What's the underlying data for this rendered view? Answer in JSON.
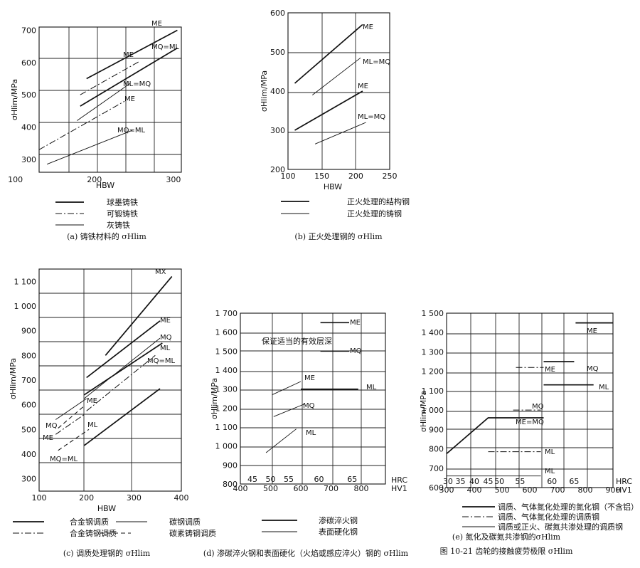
{
  "figure_caption": "图 10-21 齿轮的接触疲劳极限 σHlim",
  "chart_data": [
    {
      "id": "a",
      "type": "line",
      "caption": "(a) 铸铁材料的 σHlim",
      "xlabel": "HBW",
      "ylabel": "σHlim/MPa",
      "xlim": [
        130,
        310
      ],
      "ylim": [
        260,
        710
      ],
      "xticks": [
        100,
        200,
        300
      ],
      "xtick_labels": [
        "100",
        "200",
        "300"
      ],
      "yticks": [
        300,
        400,
        500,
        600,
        700
      ],
      "ytick_labels": [
        "300",
        "400",
        "500",
        "600",
        "700"
      ],
      "series": [
        {
          "name": "ME",
          "style": "solid",
          "x": [
            190,
            305
          ],
          "y": [
            550,
            700
          ]
        },
        {
          "name": "MQ=ML",
          "style": "solid",
          "x": [
            182,
            305
          ],
          "y": [
            465,
            645
          ]
        },
        {
          "name": "ME",
          "style": "dashdot",
          "x": [
            182,
            258
          ],
          "y": [
            500,
            605
          ]
        },
        {
          "name": "ML=MQ",
          "style": "dashdot",
          "x": [
            130,
            238
          ],
          "y": [
            330,
            480
          ]
        },
        {
          "name": "ME",
          "style": "thin",
          "x": [
            178,
            245
          ],
          "y": [
            420,
            535
          ]
        },
        {
          "name": "MQ=ML",
          "style": "thin",
          "x": [
            140,
            248
          ],
          "y": [
            285,
            390
          ]
        }
      ],
      "legend": [
        {
          "style": "solid",
          "label": "球墨铸铁"
        },
        {
          "style": "dashdot",
          "label": "可锻铸铁"
        },
        {
          "style": "thin",
          "label": "灰铸铁"
        }
      ]
    },
    {
      "id": "b",
      "type": "line",
      "caption": "(b) 正火处理钢的 σHlim",
      "xlabel": "HBW",
      "ylabel": "σHlim/MPa",
      "xlim": [
        100,
        250
      ],
      "ylim": [
        200,
        600
      ],
      "xticks": [
        100,
        150,
        200,
        250
      ],
      "xtick_labels": [
        "100",
        "150",
        "200",
        "250"
      ],
      "yticks": [
        200,
        300,
        400,
        500,
        600
      ],
      "ytick_labels": [
        "200",
        "300",
        "400",
        "500",
        "600"
      ],
      "series": [
        {
          "name": "ME",
          "style": "solid",
          "x": [
            110,
            210
          ],
          "y": [
            420,
            570
          ]
        },
        {
          "name": "ML=MQ",
          "style": "solid",
          "x": [
            110,
            210
          ],
          "y": [
            300,
            400
          ]
        },
        {
          "name": "ME",
          "style": "thin",
          "x": [
            136,
            207
          ],
          "y": [
            390,
            485
          ]
        },
        {
          "name": "ML=MQ",
          "style": "thin",
          "x": [
            140,
            215
          ],
          "y": [
            265,
            320
          ]
        }
      ],
      "legend": [
        {
          "style": "solid",
          "label": "正火处理的结构钢"
        },
        {
          "style": "thin",
          "label": "正火处理的铸钢"
        }
      ]
    },
    {
      "id": "c",
      "type": "line",
      "caption": "(c) 调质处理钢的 σHlim",
      "xlabel": "HBW",
      "ylabel": "σHlim/MPa",
      "xlim": [
        100,
        400
      ],
      "ylim": [
        250,
        1150
      ],
      "xticks": [
        100,
        200,
        300,
        400
      ],
      "xtick_labels": [
        "100",
        "200",
        "300",
        "400"
      ],
      "yticks": [
        300,
        400,
        500,
        600,
        700,
        800,
        900,
        1000,
        1100
      ],
      "ytick_labels": [
        "300",
        "400",
        "500",
        "600",
        "700",
        "800",
        "900",
        "1 000",
        "1 100"
      ],
      "series": [
        {
          "name": "MX",
          "style": "solid",
          "x": [
            240,
            380
          ],
          "y": [
            800,
            1120
          ]
        },
        {
          "name": "ME",
          "style": "solid",
          "x": [
            200,
            355
          ],
          "y": [
            710,
            940
          ]
        },
        {
          "name": "MQ",
          "style": "solid",
          "x": [
            195,
            360
          ],
          "y": [
            640,
            850
          ]
        },
        {
          "name": "ML",
          "style": "solid",
          "x": [
            195,
            355
          ],
          "y": [
            435,
            665
          ]
        },
        {
          "name": "ME",
          "style": "thin",
          "x": [
            195,
            355
          ],
          "y": [
            625,
            870
          ]
        },
        {
          "name": "MQ=ML",
          "style": "dashdot",
          "x": [
            200,
            345
          ],
          "y": [
            575,
            800
          ]
        },
        {
          "name": "ME",
          "style": "dashed",
          "x": [
            140,
            195
          ],
          "y": [
            505,
            595
          ]
        },
        {
          "name": "MQ",
          "style": "thin",
          "x": [
            135,
            200
          ],
          "y": [
            540,
            625
          ]
        },
        {
          "name": "MQ=ML",
          "style": "dashed",
          "x": [
            140,
            205
          ],
          "y": [
            415,
            500
          ]
        },
        {
          "name": "ML",
          "style": "dashdot",
          "x": [
            135,
            195
          ],
          "y": [
            480,
            560
          ]
        }
      ],
      "legend": [
        {
          "style": "solid",
          "label": "合金钢调质"
        },
        {
          "style": "thin",
          "label": "碳钢调质"
        },
        {
          "style": "dashdot",
          "label": "合金铸钢调质"
        },
        {
          "style": "dashed",
          "label": "碳素铸钢调质"
        }
      ]
    },
    {
      "id": "d",
      "type": "line",
      "caption": "(d) 渗碳淬火钢和表面硬化（火焰或感应淬火）钢的 σHlim",
      "xlabel": "HRC",
      "x2label": "HV1",
      "ylabel": "σHlim/MPa",
      "annotation": "保证适当的有效层深",
      "xlim": [
        400,
        880
      ],
      "ylim": [
        800,
        1700
      ],
      "xticks": [
        400,
        500,
        600,
        700,
        800
      ],
      "xtick_labels": [
        "400",
        "500",
        "600",
        "700",
        "800"
      ],
      "x2ticks": [
        440,
        500,
        560,
        660,
        770
      ],
      "x2tick_labels": [
        "45",
        "50",
        "55",
        "60",
        "65"
      ],
      "yticks": [
        800,
        900,
        1000,
        1100,
        1200,
        1300,
        1400,
        1500,
        1600,
        1700
      ],
      "ytick_labels": [
        "800",
        "900",
        "1 000",
        "1 100",
        "1 200",
        "1 300",
        "1 400",
        "1 500",
        "1 600",
        "1 700"
      ],
      "series": [
        {
          "name": "ME",
          "style": "solid",
          "x": [
            665,
            760
          ],
          "y": [
            1650,
            1650
          ]
        },
        {
          "name": "MQ",
          "style": "solid",
          "x": [
            665,
            760
          ],
          "y": [
            1500,
            1500
          ]
        },
        {
          "name": "ML",
          "style": "solid",
          "x": [
            600,
            790
          ],
          "y": [
            1300,
            1300
          ]
        },
        {
          "name": "ME",
          "style": "thin",
          "x": [
            505,
            600
          ],
          "y": [
            1270,
            1340
          ]
        },
        {
          "name": "MQ",
          "style": "thin",
          "x": [
            510,
            610
          ],
          "y": [
            1155,
            1220
          ]
        },
        {
          "name": "ML",
          "style": "thin",
          "x": [
            485,
            585
          ],
          "y": [
            965,
            1090
          ]
        }
      ],
      "legend": [
        {
          "style": "solid",
          "label": "渗碳淬火钢"
        },
        {
          "style": "thin",
          "label": "表面硬化钢"
        }
      ]
    },
    {
      "id": "e",
      "type": "line",
      "caption": "(e) 氮化及碳氮共渗钢的σHlim",
      "xlabel": "HRC",
      "x2label": "HV1",
      "ylabel": "σHlim/MPa",
      "xlim": [
        300,
        900
      ],
      "ylim": [
        600,
        1500
      ],
      "xticks": [
        300,
        400,
        500,
        600,
        700,
        800,
        900
      ],
      "xtick_labels": [
        "300",
        "400",
        "500",
        "600",
        "700",
        "800",
        "900"
      ],
      "x2ticks": [
        305,
        350,
        400,
        450,
        490,
        565,
        680,
        760
      ],
      "x2tick_labels": [
        "30",
        "35",
        "40",
        "45",
        "50",
        "55",
        "60",
        "65"
      ],
      "yticks": [
        600,
        700,
        800,
        900,
        1000,
        1100,
        1200,
        1300,
        1400,
        1500
      ],
      "ytick_labels": [
        "600",
        "700",
        "800",
        "900",
        "1 000",
        "1 100",
        "1 200",
        "1 300",
        "1 400",
        "1 500"
      ],
      "series": [
        {
          "name": "ME",
          "style": "solid",
          "x": [
            765,
            900
          ],
          "y": [
            1450,
            1450
          ]
        },
        {
          "name": "MQ",
          "style": "solid",
          "x": [
            650,
            760
          ],
          "y": [
            1250,
            1250
          ]
        },
        {
          "name": "ML",
          "style": "solid",
          "x": [
            650,
            830
          ],
          "y": [
            1130,
            1130
          ]
        },
        {
          "name": "ME=MQ",
          "style": "solid",
          "x": [
            300,
            450,
            650
          ],
          "y": [
            775,
            960,
            960
          ]
        },
        {
          "name": "ME",
          "style": "dashdot",
          "x": [
            550,
            650
          ],
          "y": [
            1220,
            1220
          ]
        },
        {
          "name": "MQ",
          "style": "dashdot",
          "x": [
            540,
            640
          ],
          "y": [
            1000,
            1000
          ]
        },
        {
          "name": "ML",
          "style": "dashdot",
          "x": [
            450,
            640
          ],
          "y": [
            785,
            785
          ]
        },
        {
          "name": "ML",
          "style": "thin",
          "x": [
            300,
            640
          ],
          "y": [
            660,
            660
          ]
        }
      ],
      "legend": [
        {
          "style": "solid",
          "label": "调质、气体氮化处理的氮化钢（不含铝）"
        },
        {
          "style": "dashdot",
          "label": "调质、气体氮化处理的调质钢"
        },
        {
          "style": "thin",
          "label": "调质或正火、碳氮共渗处理的调质钢"
        }
      ]
    }
  ]
}
